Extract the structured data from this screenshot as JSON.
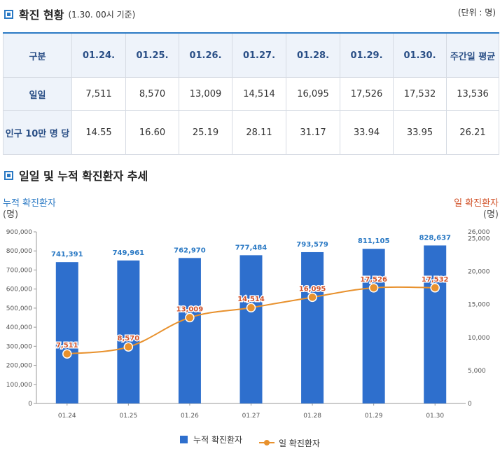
{
  "section1": {
    "title": "확진 현황",
    "subtitle": "(1.30. 00시 기준)",
    "unit": "(단위 : 명)"
  },
  "table": {
    "headers": [
      "구분",
      "01.24.",
      "01.25.",
      "01.26.",
      "01.27.",
      "01.28.",
      "01.29.",
      "01.30.",
      "주간일 평균"
    ],
    "rows": [
      {
        "label": "일일",
        "values": [
          "7,511",
          "8,570",
          "13,009",
          "14,514",
          "16,095",
          "17,526",
          "17,532",
          "13,536"
        ]
      },
      {
        "label": "인구 10만 명 당",
        "values": [
          "14.55",
          "16.60",
          "25.19",
          "28.11",
          "31.17",
          "33.94",
          "33.95",
          "26.21"
        ]
      }
    ]
  },
  "section2": {
    "title": "일일 및 누적 확진환자 추세"
  },
  "left_axis": {
    "label": "누적 확진환자",
    "unit": "(명)"
  },
  "right_axis": {
    "label": "일 확진환자",
    "unit": "(명)"
  },
  "legend": {
    "bar": "누적 확진환자",
    "line": "일 확진환자"
  },
  "colors": {
    "bar": "#2e6fcd",
    "line": "#e8912d",
    "bar_label": "#2a79c4",
    "line_label": "#d2532a",
    "accent": "#2a79c4"
  },
  "chart_data": {
    "type": "bar",
    "categories": [
      "01.24",
      "01.25",
      "01.26",
      "01.27",
      "01.28",
      "01.29",
      "01.30"
    ],
    "series": [
      {
        "name": "누적 확진환자",
        "type": "bar",
        "axis": "left",
        "values": [
          741391,
          749961,
          762970,
          777484,
          793579,
          811105,
          828637
        ],
        "labels": [
          "741,391",
          "749,961",
          "762,970",
          "777,484",
          "793,579",
          "811,105",
          "828,637"
        ]
      },
      {
        "name": "일 확진환자",
        "type": "line",
        "axis": "right",
        "values": [
          7511,
          8570,
          13009,
          14514,
          16095,
          17526,
          17532
        ],
        "labels": [
          "7,511",
          "8,570",
          "13,009",
          "14,514",
          "16,095",
          "17,526",
          "17,532"
        ]
      }
    ],
    "left_ylim": [
      0,
      900000
    ],
    "left_ticks": [
      "0",
      "100,000",
      "200,000",
      "300,000",
      "400,000",
      "500,000",
      "600,000",
      "700,000",
      "800,000",
      "900,000"
    ],
    "right_ylim": [
      0,
      26000
    ],
    "right_ticks": [
      {
        "value": 0,
        "label": "0"
      },
      {
        "value": 5000,
        "label": "5,000"
      },
      {
        "value": 10000,
        "label": "10,000"
      },
      {
        "value": 15000,
        "label": "15,000"
      },
      {
        "value": 20000,
        "label": "20,000"
      },
      {
        "value": 25000,
        "label": "25,000"
      },
      {
        "value": 26000,
        "label": "26,000"
      }
    ],
    "xlabel": "",
    "ylabel": "누적 확진환자",
    "y2label": "일 확진환자"
  }
}
